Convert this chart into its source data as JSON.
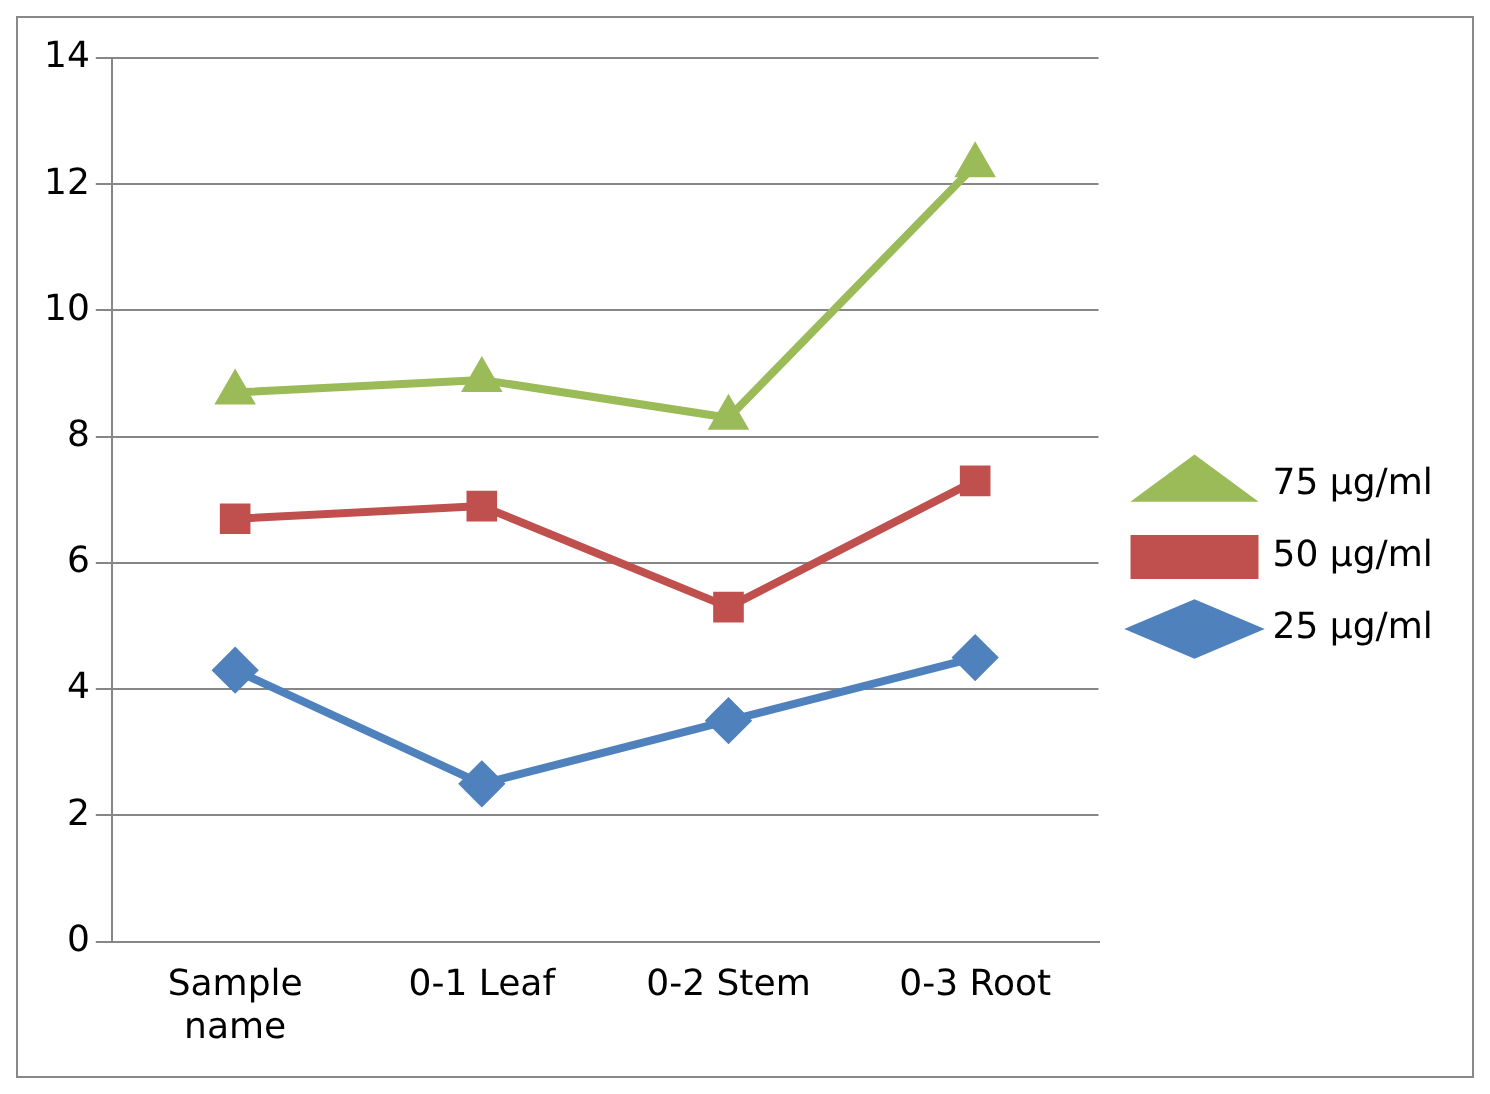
{
  "chart_data": {
    "type": "line",
    "categories": [
      "Sample name",
      "0-1 Leaf",
      "0-2 Stem",
      "0-3 Root"
    ],
    "series": [
      {
        "name": "75 µg/ml",
        "color": "#9bbb59",
        "marker": "triangle",
        "values": [
          8.7,
          8.9,
          8.3,
          12.3
        ]
      },
      {
        "name": "50 µg/ml",
        "color": "#c0504d",
        "marker": "square",
        "values": [
          6.7,
          6.9,
          5.3,
          7.3
        ]
      },
      {
        "name": "25 µg/ml",
        "color": "#4f81bd",
        "marker": "diamond",
        "values": [
          4.3,
          2.5,
          3.5,
          4.5
        ]
      }
    ],
    "ylim": [
      0,
      14
    ],
    "yticks": [
      0,
      2,
      4,
      6,
      8,
      10,
      12,
      14
    ],
    "grid": "y",
    "legend": "right"
  }
}
